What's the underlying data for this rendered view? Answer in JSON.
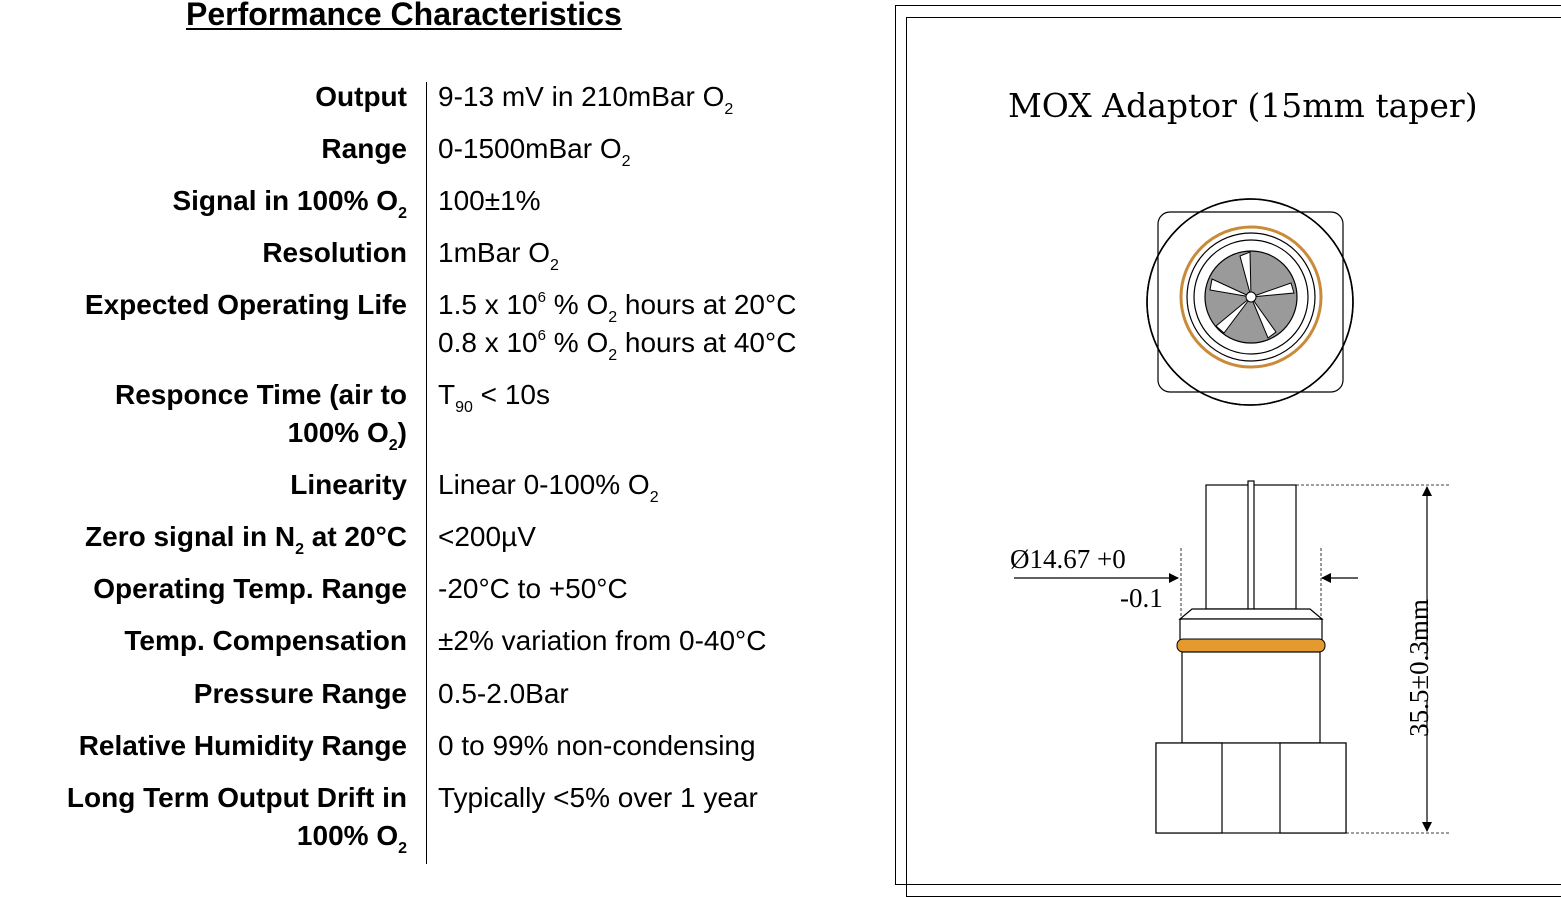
{
  "title": "Performance Characteristics",
  "rows": [
    {
      "label": "Output",
      "value": "9-13 mV in 210mBar O",
      "value_sub": "2"
    },
    {
      "label": "Range",
      "value": "0-1500mBar O",
      "value_sub": "2"
    },
    {
      "label": "Signal in 100% O",
      "label_sub": "2",
      "value": "100±1%"
    },
    {
      "label": "Resolution",
      "value": "1mBar O",
      "value_sub": "2"
    },
    {
      "label": "Expected Operating Life",
      "value_line1_a": "1.5 x 10",
      "value_line1_sup": "6",
      "value_line1_b": " % O",
      "value_line1_sub": "2",
      "value_line1_c": " hours at 20°C",
      "value_line2_a": "0.8 x 10",
      "value_line2_sup": "6",
      "value_line2_b": " % O",
      "value_line2_sub": "2",
      "value_line2_c": " hours at 40°C"
    },
    {
      "label_line1": "Responce Time (air to",
      "label_line2": "100% O",
      "label_line2_sub": "2",
      "label_line2_end": ")",
      "value": "T",
      "value_sub": "90",
      "value_end": " < 10s"
    },
    {
      "label": "Linearity",
      "value": "Linear 0-100% O",
      "value_sub": "2"
    },
    {
      "label": "Zero signal in N",
      "label_sub": "2",
      "label_end": " at 20°C",
      "value": "<200µV"
    },
    {
      "label": "Operating Temp. Range",
      "value": "-20°C to +50°C"
    },
    {
      "label": "Temp. Compensation",
      "value": "±2% variation from 0-40°C"
    },
    {
      "label": "Pressure Range",
      "value": "0.5-2.0Bar"
    },
    {
      "label": "Relative Humidity Range",
      "value": "0 to 99% non-condensing"
    },
    {
      "label_line1": "Long Term Output Drift in",
      "label_line2": "100% O",
      "label_line2_sub": "2",
      "value": "Typically <5% over 1 year"
    }
  ],
  "drawing": {
    "title": "MOX Adaptor (15mm taper)",
    "diameter_label": "Ø14.67 +0",
    "diameter_tol": "-0.1",
    "length_label": "35.5±0.3mm",
    "colors": {
      "oring": "#e59a2e",
      "ring": "#c98a3a",
      "filter": "#999999"
    }
  }
}
